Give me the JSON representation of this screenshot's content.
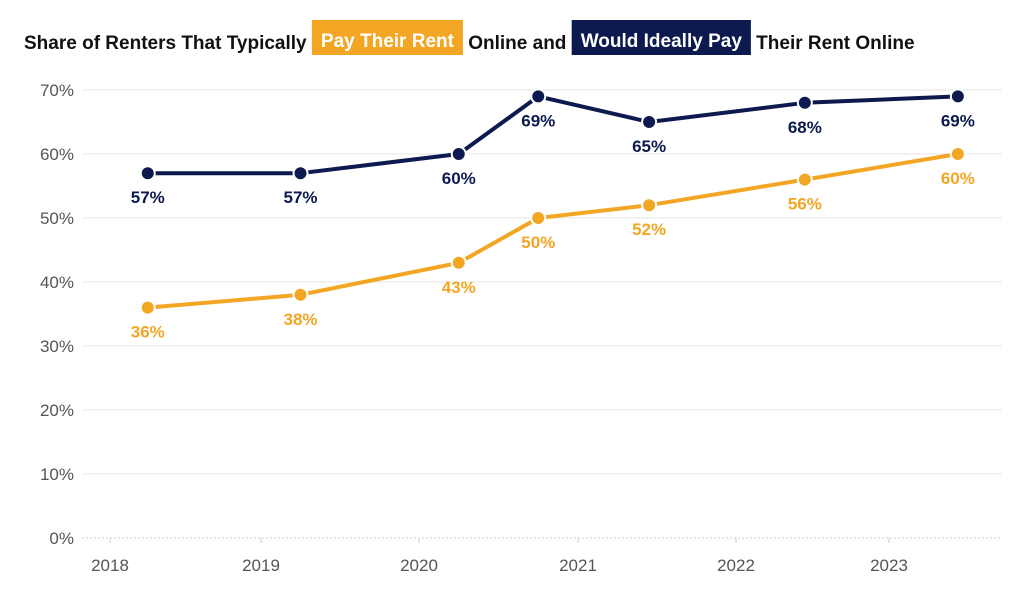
{
  "colors": {
    "pay": "#f2a623",
    "ideal": "#0c1a4f",
    "grid": "#e6e6e6",
    "axis_text": "#555555",
    "title_text": "#111111"
  },
  "chart_data": {
    "type": "line",
    "title_parts": [
      {
        "text": "Share of Renters That Typically ",
        "style": "plain"
      },
      {
        "text": "Pay Their Rent",
        "style": "badge",
        "color": "#f2a623"
      },
      {
        "text": " Online and ",
        "style": "plain"
      },
      {
        "text": "Would Ideally Pay",
        "style": "badge",
        "color": "#0c1a4f"
      },
      {
        "text": " Their Rent Online",
        "style": "plain"
      }
    ],
    "x_ticks": [
      "2018",
      "2019",
      "2020",
      "2021",
      "2022",
      "2023"
    ],
    "xlim": [
      2018.0,
      2023.7
    ],
    "ylim": [
      0,
      70
    ],
    "y_ticks": [
      0,
      10,
      20,
      30,
      40,
      50,
      60,
      70
    ],
    "y_tick_labels": [
      "0%",
      "10%",
      "20%",
      "30%",
      "40%",
      "50%",
      "60%",
      "70%"
    ],
    "grid": true,
    "series": [
      {
        "name": "Would Ideally Pay",
        "color": "#0c1a4f",
        "label_position": "below",
        "x": [
          2018.25,
          2019.25,
          2020.25,
          2020.75,
          2021.45,
          2022.45,
          2023.45
        ],
        "values": [
          57,
          57,
          60,
          69,
          65,
          68,
          69
        ],
        "labels": [
          "57%",
          "57%",
          "60%",
          "69%",
          "65%",
          "68%",
          "69%"
        ]
      },
      {
        "name": "Pay Their Rent",
        "color": "#f2a623",
        "label_position": "below",
        "x": [
          2018.25,
          2019.25,
          2020.25,
          2020.75,
          2021.45,
          2022.45,
          2023.45
        ],
        "values": [
          36,
          38,
          43,
          50,
          52,
          56,
          60
        ],
        "labels": [
          "36%",
          "38%",
          "43%",
          "50%",
          "52%",
          "56%",
          "60%"
        ]
      }
    ]
  }
}
